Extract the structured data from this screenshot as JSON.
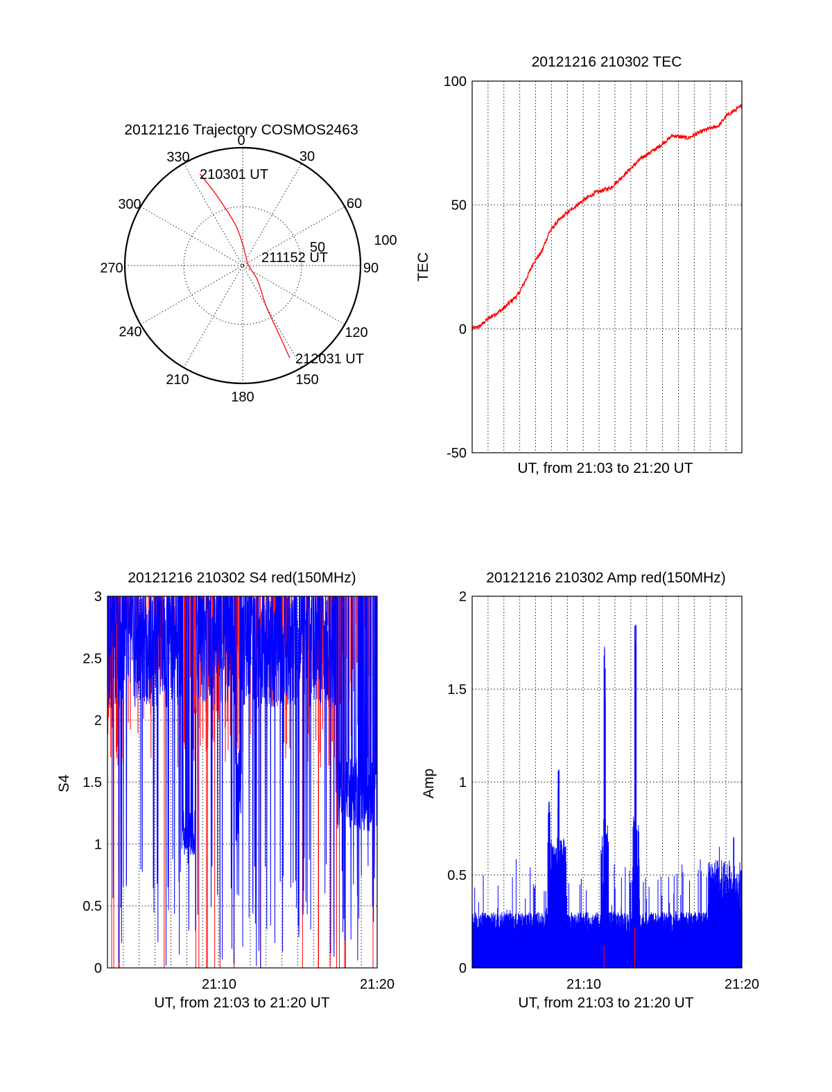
{
  "colors": {
    "red": "#ff0000",
    "blue": "#0000ff",
    "axis": "#000000"
  },
  "chart_data": [
    {
      "id": "trajectory",
      "type": "polar",
      "title": "20121216 Trajectory COSMOS2463",
      "azimuth_labels": [
        "0",
        "30",
        "60",
        "90",
        "120",
        "150",
        "180",
        "210",
        "240",
        "270",
        "300",
        "330"
      ],
      "ring_labels": [
        "50",
        "100"
      ],
      "annotations": {
        "start": "210301 UT",
        "mid": "211152 UT",
        "end": "212031 UT"
      },
      "path": [
        [
          335,
          86
        ],
        [
          340,
          62
        ],
        [
          350,
          35
        ],
        [
          0,
          18
        ],
        [
          20,
          8
        ],
        [
          90,
          5
        ],
        [
          135,
          18
        ],
        [
          150,
          40
        ],
        [
          152,
          64
        ],
        [
          153,
          88
        ]
      ],
      "series_color": "red"
    },
    {
      "id": "tec",
      "type": "line",
      "title": "20121216 210302 TEC",
      "ylabel": "TEC",
      "xlabel": "UT, from 21:03 to 21:20 UT",
      "ylim": [
        -50,
        100
      ],
      "yticks": [
        "100",
        "50",
        "0",
        "-50"
      ],
      "xlim": [
        0,
        17.5
      ],
      "anchors": [
        [
          0,
          0
        ],
        [
          0.5,
          1
        ],
        [
          1,
          4
        ],
        [
          2,
          8
        ],
        [
          3,
          14
        ],
        [
          3.5,
          20
        ],
        [
          4,
          27
        ],
        [
          4.5,
          31
        ],
        [
          5,
          39
        ],
        [
          5.5,
          43
        ],
        [
          6,
          46
        ],
        [
          7,
          51
        ],
        [
          8,
          55
        ],
        [
          9,
          57
        ],
        [
          10,
          63
        ],
        [
          11,
          69
        ],
        [
          12,
          73
        ],
        [
          13,
          78
        ],
        [
          14,
          77
        ],
        [
          15,
          80
        ],
        [
          16,
          82
        ],
        [
          16.5,
          86
        ],
        [
          17.5,
          90
        ]
      ],
      "series_color": "red"
    },
    {
      "id": "s4",
      "type": "line",
      "title": "20121216 210302 S4 red(150MHz)",
      "ylabel": "S4",
      "xlabel": "UT, from 21:03 to 21:20 UT",
      "ylim": [
        0,
        3
      ],
      "yticks": [
        "3",
        "2.5",
        "2",
        "1.5",
        "1",
        "0.5",
        "0"
      ],
      "xticks": [
        "21:10",
        "21:20"
      ],
      "xlim": [
        0,
        17.5
      ],
      "series": [
        {
          "color": "red"
        },
        {
          "color": "blue"
        }
      ]
    },
    {
      "id": "amp",
      "type": "line",
      "title": "20121216 210302 Amp red(150MHz)",
      "ylabel": "Amp",
      "xlabel": "UT, from 21:03 to 21:20 UT",
      "ylim": [
        0,
        2
      ],
      "yticks": [
        "2",
        "1.5",
        "1",
        "0.5",
        "0"
      ],
      "xticks": [
        "21:10",
        "21:20"
      ],
      "xlim": [
        0,
        17.5
      ],
      "spikes": [
        [
          5.0,
          0.94
        ],
        [
          5.6,
          1.07
        ],
        [
          8.6,
          1.82
        ],
        [
          10.6,
          1.85
        ]
      ],
      "series": [
        {
          "color": "blue"
        },
        {
          "color": "red"
        }
      ]
    }
  ]
}
